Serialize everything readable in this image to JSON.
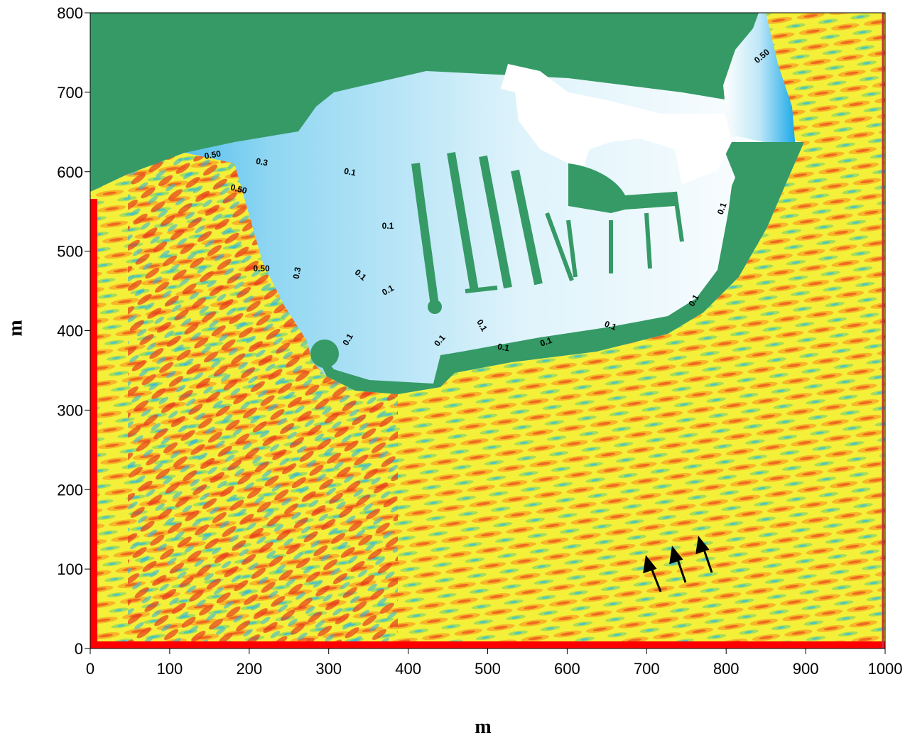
{
  "chart_data": {
    "type": "contour",
    "xlabel": "m",
    "ylabel": "m",
    "xlim": [
      0,
      1000
    ],
    "ylim": [
      0,
      800
    ],
    "xticks": [
      0,
      100,
      200,
      300,
      400,
      500,
      600,
      700,
      800,
      900,
      1000
    ],
    "yticks": [
      0,
      100,
      200,
      300,
      400,
      500,
      600,
      700,
      800
    ],
    "contour_labels": [
      "0.50",
      "0.3",
      "0.50",
      "0.50",
      "0.3",
      "0.1",
      "0.1",
      "0.1",
      "0.1",
      "0.1",
      "0.1",
      "0.1",
      "0.1",
      "0.1",
      "0.1",
      "0.1",
      "0.50",
      "0.1"
    ]
  }
}
